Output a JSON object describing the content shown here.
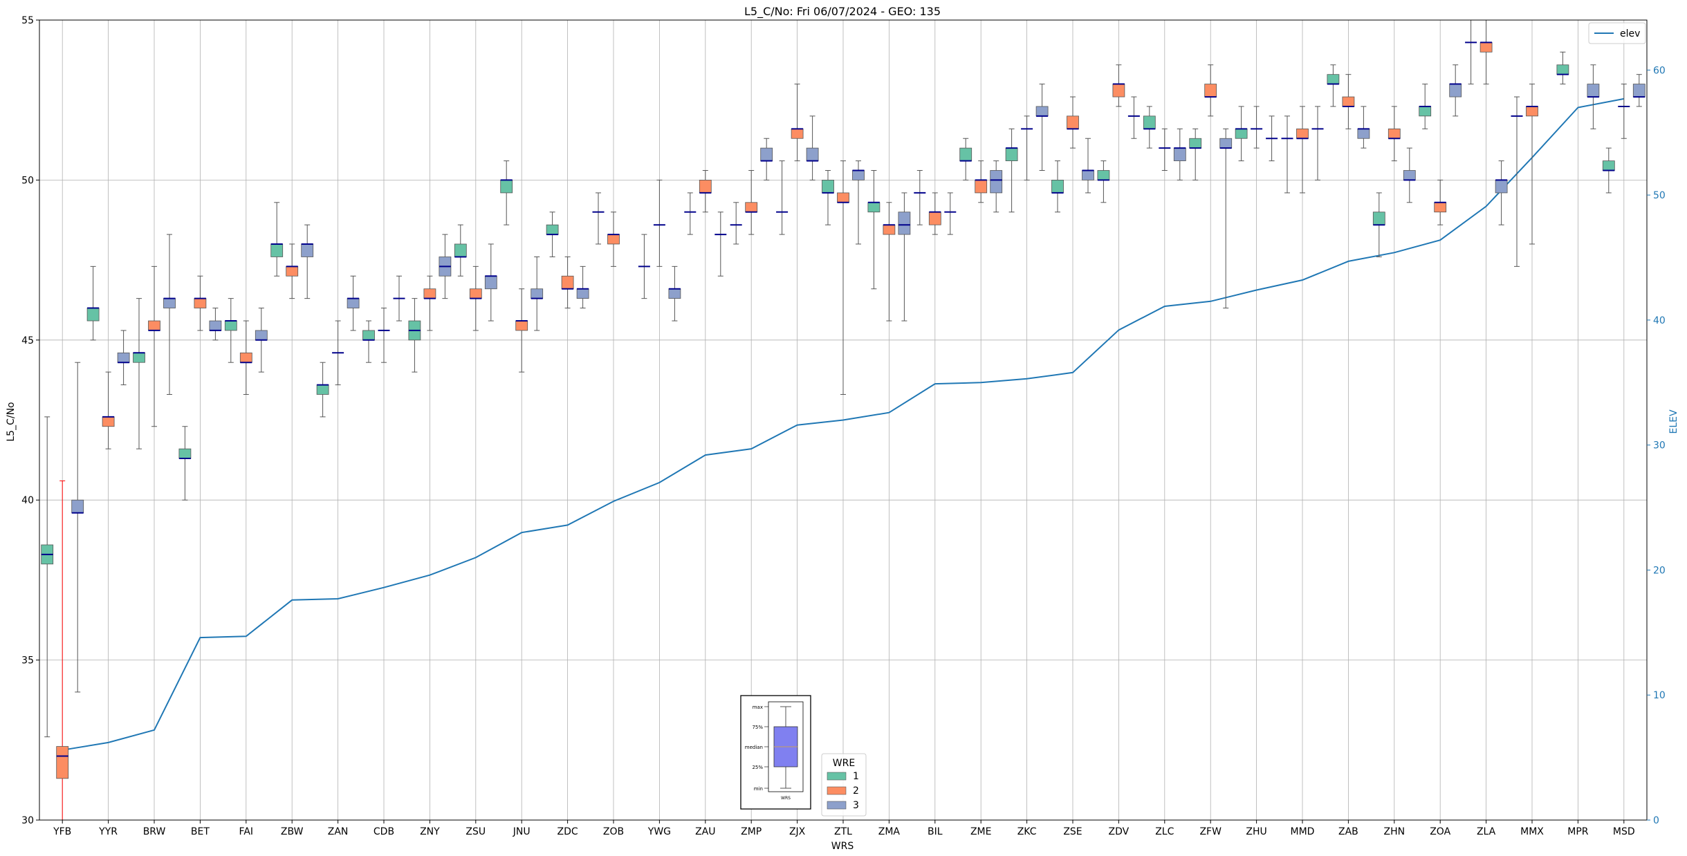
{
  "chart_data": {
    "type": "box",
    "title": "L5_C/No: Fri 06/07/2024 - GEO: 135",
    "xlabel": "WRS",
    "ylabel": "L5_C/No",
    "y2label": "ELEV",
    "ylim": [
      30,
      55
    ],
    "y2lim": [
      0,
      64
    ],
    "yticks": [
      30,
      35,
      40,
      45,
      50,
      55
    ],
    "y2ticks": [
      0,
      10,
      20,
      30,
      40,
      50,
      60
    ],
    "grid": true,
    "categories": [
      "YFB",
      "YYR",
      "BRW",
      "BET",
      "FAI",
      "ZBW",
      "ZAN",
      "CDB",
      "ZNY",
      "ZSU",
      "JNU",
      "ZDC",
      "ZOB",
      "YWG",
      "ZAU",
      "ZMP",
      "ZJX",
      "ZTL",
      "ZMA",
      "BIL",
      "ZME",
      "ZKC",
      "ZSE",
      "ZDV",
      "ZLC",
      "ZFW",
      "ZHU",
      "MMD",
      "ZAB",
      "ZHN",
      "ZOA",
      "ZLA",
      "MMX",
      "MPR",
      "MSD"
    ],
    "colors": {
      "1": "#66c2a5",
      "2": "#fc8d62",
      "3": "#8da0cb",
      "elev": "#1f77b4",
      "median": "#00008b",
      "outlier": "#ff0000"
    },
    "boxes": [
      {
        "cat": "YFB",
        "wre": "1",
        "min": 32.6,
        "q1": 38.0,
        "median": 38.3,
        "q3": 38.6,
        "max": 42.6
      },
      {
        "cat": "YFB",
        "wre": "2",
        "min": 30.0,
        "q1": 31.3,
        "median": 32.0,
        "q3": 32.3,
        "max": 40.6,
        "whisker_color": "#ff0000"
      },
      {
        "cat": "YFB",
        "wre": "3",
        "min": 34.0,
        "q1": 39.6,
        "median": 39.6,
        "q3": 40.0,
        "max": 44.3
      },
      {
        "cat": "YYR",
        "wre": "1",
        "min": 45.0,
        "q1": 45.6,
        "median": 46.0,
        "q3": 46.0,
        "max": 47.3
      },
      {
        "cat": "YYR",
        "wre": "2",
        "min": 41.6,
        "q1": 42.3,
        "median": 42.6,
        "q3": 42.6,
        "max": 44.0
      },
      {
        "cat": "YYR",
        "wre": "3",
        "min": 43.6,
        "q1": 44.3,
        "median": 44.3,
        "q3": 44.6,
        "max": 45.3
      },
      {
        "cat": "BRW",
        "wre": "1",
        "min": 41.6,
        "q1": 44.3,
        "median": 44.6,
        "q3": 44.6,
        "max": 46.3
      },
      {
        "cat": "BRW",
        "wre": "2",
        "min": 42.3,
        "q1": 45.3,
        "median": 45.3,
        "q3": 45.6,
        "max": 47.3
      },
      {
        "cat": "BRW",
        "wre": "3",
        "min": 43.3,
        "q1": 46.0,
        "median": 46.3,
        "q3": 46.3,
        "max": 48.3
      },
      {
        "cat": "BET",
        "wre": "1",
        "min": 40.0,
        "q1": 41.3,
        "median": 41.3,
        "q3": 41.6,
        "max": 42.3
      },
      {
        "cat": "BET",
        "wre": "2",
        "min": 45.3,
        "q1": 46.0,
        "median": 46.3,
        "q3": 46.3,
        "max": 47.0
      },
      {
        "cat": "BET",
        "wre": "3",
        "min": 45.0,
        "q1": 45.3,
        "median": 45.3,
        "q3": 45.6,
        "max": 46.0
      },
      {
        "cat": "FAI",
        "wre": "1",
        "min": 44.3,
        "q1": 45.3,
        "median": 45.6,
        "q3": 45.6,
        "max": 46.3
      },
      {
        "cat": "FAI",
        "wre": "2",
        "min": 43.3,
        "q1": 44.3,
        "median": 44.3,
        "q3": 44.6,
        "max": 45.6
      },
      {
        "cat": "FAI",
        "wre": "3",
        "min": 44.0,
        "q1": 45.0,
        "median": 45.0,
        "q3": 45.3,
        "max": 46.0
      },
      {
        "cat": "ZBW",
        "wre": "1",
        "min": 47.0,
        "q1": 47.6,
        "median": 48.0,
        "q3": 48.0,
        "max": 49.3
      },
      {
        "cat": "ZBW",
        "wre": "2",
        "min": 46.3,
        "q1": 47.0,
        "median": 47.3,
        "q3": 47.3,
        "max": 48.0
      },
      {
        "cat": "ZBW",
        "wre": "3",
        "min": 46.3,
        "q1": 47.6,
        "median": 48.0,
        "q3": 48.0,
        "max": 48.6
      },
      {
        "cat": "ZAN",
        "wre": "1",
        "min": 42.6,
        "q1": 43.3,
        "median": 43.6,
        "q3": 43.6,
        "max": 44.3
      },
      {
        "cat": "ZAN",
        "wre": "2",
        "min": 43.6,
        "q1": 44.6,
        "median": 44.6,
        "q3": 44.6,
        "max": 45.6
      },
      {
        "cat": "ZAN",
        "wre": "3",
        "min": 45.3,
        "q1": 46.0,
        "median": 46.3,
        "q3": 46.3,
        "max": 47.0
      },
      {
        "cat": "CDB",
        "wre": "1",
        "min": 44.3,
        "q1": 45.0,
        "median": 45.0,
        "q3": 45.3,
        "max": 45.6
      },
      {
        "cat": "CDB",
        "wre": "2",
        "min": 44.3,
        "q1": 45.3,
        "median": 45.3,
        "q3": 45.3,
        "max": 46.0
      },
      {
        "cat": "CDB",
        "wre": "3",
        "min": 45.6,
        "q1": 46.3,
        "median": 46.3,
        "q3": 46.3,
        "max": 47.0
      },
      {
        "cat": "ZNY",
        "wre": "1",
        "min": 44.0,
        "q1": 45.0,
        "median": 45.3,
        "q3": 45.6,
        "max": 46.3
      },
      {
        "cat": "ZNY",
        "wre": "2",
        "min": 45.3,
        "q1": 46.3,
        "median": 46.3,
        "q3": 46.6,
        "max": 47.0
      },
      {
        "cat": "ZNY",
        "wre": "3",
        "min": 46.3,
        "q1": 47.0,
        "median": 47.3,
        "q3": 47.6,
        "max": 48.3
      },
      {
        "cat": "ZSU",
        "wre": "1",
        "min": 47.0,
        "q1": 47.6,
        "median": 47.6,
        "q3": 48.0,
        "max": 48.6
      },
      {
        "cat": "ZSU",
        "wre": "2",
        "min": 45.3,
        "q1": 46.3,
        "median": 46.3,
        "q3": 46.6,
        "max": 47.3
      },
      {
        "cat": "ZSU",
        "wre": "3",
        "min": 45.6,
        "q1": 46.6,
        "median": 47.0,
        "q3": 47.0,
        "max": 48.0
      },
      {
        "cat": "JNU",
        "wre": "1",
        "min": 48.6,
        "q1": 49.6,
        "median": 50.0,
        "q3": 50.0,
        "max": 50.6
      },
      {
        "cat": "JNU",
        "wre": "2",
        "min": 44.0,
        "q1": 45.3,
        "median": 45.6,
        "q3": 45.6,
        "max": 46.6
      },
      {
        "cat": "JNU",
        "wre": "3",
        "min": 45.3,
        "q1": 46.3,
        "median": 46.3,
        "q3": 46.6,
        "max": 47.6
      },
      {
        "cat": "ZDC",
        "wre": "1",
        "min": 47.6,
        "q1": 48.3,
        "median": 48.3,
        "q3": 48.6,
        "max": 49.0
      },
      {
        "cat": "ZDC",
        "wre": "2",
        "min": 46.0,
        "q1": 46.6,
        "median": 46.6,
        "q3": 47.0,
        "max": 47.6
      },
      {
        "cat": "ZDC",
        "wre": "3",
        "min": 46.0,
        "q1": 46.3,
        "median": 46.6,
        "q3": 46.6,
        "max": 47.3
      },
      {
        "cat": "ZOB",
        "wre": "1",
        "min": 48.0,
        "q1": 49.0,
        "median": 49.0,
        "q3": 49.0,
        "max": 49.6
      },
      {
        "cat": "ZOB",
        "wre": "2",
        "min": 47.3,
        "q1": 48.0,
        "median": 48.3,
        "q3": 48.3,
        "max": 49.0
      },
      {
        "cat": "YWG",
        "wre": "1",
        "min": 46.3,
        "q1": 47.3,
        "median": 47.3,
        "q3": 47.3,
        "max": 48.3
      },
      {
        "cat": "YWG",
        "wre": "2",
        "min": 47.3,
        "q1": 48.6,
        "median": 48.6,
        "q3": 48.6,
        "max": 50.0
      },
      {
        "cat": "YWG",
        "wre": "3",
        "min": 45.6,
        "q1": 46.3,
        "median": 46.6,
        "q3": 46.6,
        "max": 47.3
      },
      {
        "cat": "ZAU",
        "wre": "1",
        "min": 48.3,
        "q1": 49.0,
        "median": 49.0,
        "q3": 49.0,
        "max": 49.6
      },
      {
        "cat": "ZAU",
        "wre": "2",
        "min": 49.0,
        "q1": 49.6,
        "median": 49.6,
        "q3": 50.0,
        "max": 50.3
      },
      {
        "cat": "ZAU",
        "wre": "3",
        "min": 47.0,
        "q1": 48.3,
        "median": 48.3,
        "q3": 48.3,
        "max": 49.0
      },
      {
        "cat": "ZMP",
        "wre": "1",
        "min": 48.0,
        "q1": 48.6,
        "median": 48.6,
        "q3": 48.6,
        "max": 49.3
      },
      {
        "cat": "ZMP",
        "wre": "2",
        "min": 48.3,
        "q1": 49.0,
        "median": 49.0,
        "q3": 49.3,
        "max": 50.3
      },
      {
        "cat": "ZMP",
        "wre": "3",
        "min": 50.0,
        "q1": 50.6,
        "median": 50.6,
        "q3": 51.0,
        "max": 51.3
      },
      {
        "cat": "ZJX",
        "wre": "1",
        "min": 48.3,
        "q1": 49.0,
        "median": 49.0,
        "q3": 49.0,
        "max": 50.6
      },
      {
        "cat": "ZJX",
        "wre": "2",
        "min": 50.6,
        "q1": 51.3,
        "median": 51.6,
        "q3": 51.6,
        "max": 53.0
      },
      {
        "cat": "ZJX",
        "wre": "3",
        "min": 50.0,
        "q1": 50.6,
        "median": 50.6,
        "q3": 51.0,
        "max": 52.0
      },
      {
        "cat": "ZTL",
        "wre": "1",
        "min": 48.6,
        "q1": 49.6,
        "median": 49.6,
        "q3": 50.0,
        "max": 50.3
      },
      {
        "cat": "ZTL",
        "wre": "2",
        "min": 43.3,
        "q1": 49.3,
        "median": 49.3,
        "q3": 49.6,
        "max": 50.6
      },
      {
        "cat": "ZTL",
        "wre": "3",
        "min": 48.0,
        "q1": 50.0,
        "median": 50.3,
        "q3": 50.3,
        "max": 50.6
      },
      {
        "cat": "ZMA",
        "wre": "1",
        "min": 46.6,
        "q1": 49.0,
        "median": 49.3,
        "q3": 49.3,
        "max": 50.3
      },
      {
        "cat": "ZMA",
        "wre": "2",
        "min": 45.6,
        "q1": 48.3,
        "median": 48.6,
        "q3": 48.6,
        "max": 49.3
      },
      {
        "cat": "ZMA",
        "wre": "3",
        "min": 45.6,
        "q1": 48.3,
        "median": 48.6,
        "q3": 49.0,
        "max": 49.6
      },
      {
        "cat": "BIL",
        "wre": "1",
        "min": 48.6,
        "q1": 49.6,
        "median": 49.6,
        "q3": 49.6,
        "max": 50.3
      },
      {
        "cat": "BIL",
        "wre": "2",
        "min": 48.3,
        "q1": 48.6,
        "median": 49.0,
        "q3": 49.0,
        "max": 49.6
      },
      {
        "cat": "BIL",
        "wre": "3",
        "min": 48.3,
        "q1": 49.0,
        "median": 49.0,
        "q3": 49.0,
        "max": 49.6
      },
      {
        "cat": "ZME",
        "wre": "1",
        "min": 50.0,
        "q1": 50.6,
        "median": 50.6,
        "q3": 51.0,
        "max": 51.3
      },
      {
        "cat": "ZME",
        "wre": "2",
        "min": 49.3,
        "q1": 49.6,
        "median": 50.0,
        "q3": 50.0,
        "max": 50.6
      },
      {
        "cat": "ZME",
        "wre": "3",
        "min": 49.0,
        "q1": 49.6,
        "median": 50.0,
        "q3": 50.3,
        "max": 50.6
      },
      {
        "cat": "ZKC",
        "wre": "1",
        "min": 49.0,
        "q1": 50.6,
        "median": 51.0,
        "q3": 51.0,
        "max": 51.6
      },
      {
        "cat": "ZKC",
        "wre": "2",
        "min": 50.0,
        "q1": 51.6,
        "median": 51.6,
        "q3": 51.6,
        "max": 52.0
      },
      {
        "cat": "ZKC",
        "wre": "3",
        "min": 50.3,
        "q1": 52.0,
        "median": 52.0,
        "q3": 52.3,
        "max": 53.0
      },
      {
        "cat": "ZSE",
        "wre": "1",
        "min": 49.0,
        "q1": 49.6,
        "median": 49.6,
        "q3": 50.0,
        "max": 50.6
      },
      {
        "cat": "ZSE",
        "wre": "2",
        "min": 51.0,
        "q1": 51.6,
        "median": 51.6,
        "q3": 52.0,
        "max": 52.6
      },
      {
        "cat": "ZSE",
        "wre": "3",
        "min": 49.6,
        "q1": 50.0,
        "median": 50.3,
        "q3": 50.3,
        "max": 51.3
      },
      {
        "cat": "ZDV",
        "wre": "1",
        "min": 49.3,
        "q1": 50.0,
        "median": 50.0,
        "q3": 50.3,
        "max": 50.6
      },
      {
        "cat": "ZDV",
        "wre": "2",
        "min": 52.3,
        "q1": 52.6,
        "median": 53.0,
        "q3": 53.0,
        "max": 53.6
      },
      {
        "cat": "ZDV",
        "wre": "3",
        "min": 51.3,
        "q1": 52.0,
        "median": 52.0,
        "q3": 52.0,
        "max": 52.6
      },
      {
        "cat": "ZLC",
        "wre": "1",
        "min": 51.0,
        "q1": 51.6,
        "median": 51.6,
        "q3": 52.0,
        "max": 52.3
      },
      {
        "cat": "ZLC",
        "wre": "2",
        "min": 50.3,
        "q1": 51.0,
        "median": 51.0,
        "q3": 51.0,
        "max": 51.6
      },
      {
        "cat": "ZLC",
        "wre": "3",
        "min": 50.0,
        "q1": 50.6,
        "median": 51.0,
        "q3": 51.0,
        "max": 51.6
      },
      {
        "cat": "ZFW",
        "wre": "1",
        "min": 50.0,
        "q1": 51.0,
        "median": 51.0,
        "q3": 51.3,
        "max": 51.6
      },
      {
        "cat": "ZFW",
        "wre": "2",
        "min": 52.0,
        "q1": 52.6,
        "median": 52.6,
        "q3": 53.0,
        "max": 53.6
      },
      {
        "cat": "ZFW",
        "wre": "3",
        "min": 46.0,
        "q1": 51.0,
        "median": 51.0,
        "q3": 51.3,
        "max": 51.6
      },
      {
        "cat": "ZHU",
        "wre": "1",
        "min": 50.6,
        "q1": 51.3,
        "median": 51.6,
        "q3": 51.6,
        "max": 52.3
      },
      {
        "cat": "ZHU",
        "wre": "2",
        "min": 51.0,
        "q1": 51.6,
        "median": 51.6,
        "q3": 51.6,
        "max": 52.3
      },
      {
        "cat": "ZHU",
        "wre": "3",
        "min": 50.6,
        "q1": 51.3,
        "median": 51.3,
        "q3": 51.3,
        "max": 52.0
      },
      {
        "cat": "MMD",
        "wre": "1",
        "min": 49.6,
        "q1": 51.3,
        "median": 51.3,
        "q3": 51.3,
        "max": 52.0
      },
      {
        "cat": "MMD",
        "wre": "2",
        "min": 49.6,
        "q1": 51.3,
        "median": 51.3,
        "q3": 51.6,
        "max": 52.3
      },
      {
        "cat": "MMD",
        "wre": "3",
        "min": 50.0,
        "q1": 51.6,
        "median": 51.6,
        "q3": 51.6,
        "max": 52.3
      },
      {
        "cat": "ZAB",
        "wre": "1",
        "min": 52.3,
        "q1": 53.0,
        "median": 53.0,
        "q3": 53.3,
        "max": 53.6
      },
      {
        "cat": "ZAB",
        "wre": "2",
        "min": 51.6,
        "q1": 52.3,
        "median": 52.3,
        "q3": 52.6,
        "max": 53.3
      },
      {
        "cat": "ZAB",
        "wre": "3",
        "min": 51.0,
        "q1": 51.3,
        "median": 51.6,
        "q3": 51.6,
        "max": 52.3
      },
      {
        "cat": "ZHN",
        "wre": "1",
        "min": 47.6,
        "q1": 48.6,
        "median": 48.6,
        "q3": 49.0,
        "max": 49.6
      },
      {
        "cat": "ZHN",
        "wre": "2",
        "min": 50.6,
        "q1": 51.3,
        "median": 51.3,
        "q3": 51.6,
        "max": 52.3
      },
      {
        "cat": "ZHN",
        "wre": "3",
        "min": 49.3,
        "q1": 50.0,
        "median": 50.0,
        "q3": 50.3,
        "max": 51.0
      },
      {
        "cat": "ZOA",
        "wre": "1",
        "min": 51.6,
        "q1": 52.0,
        "median": 52.3,
        "q3": 52.3,
        "max": 53.0
      },
      {
        "cat": "ZOA",
        "wre": "2",
        "min": 48.6,
        "q1": 49.0,
        "median": 49.3,
        "q3": 49.3,
        "max": 50.0
      },
      {
        "cat": "ZOA",
        "wre": "3",
        "min": 52.0,
        "q1": 52.6,
        "median": 53.0,
        "q3": 53.0,
        "max": 53.6
      },
      {
        "cat": "ZLA",
        "wre": "1",
        "min": 53.0,
        "q1": 54.3,
        "median": 54.3,
        "q3": 54.3,
        "max": 55.0
      },
      {
        "cat": "ZLA",
        "wre": "2",
        "min": 53.0,
        "q1": 54.0,
        "median": 54.3,
        "q3": 54.3,
        "max": 55.0
      },
      {
        "cat": "ZLA",
        "wre": "3",
        "min": 48.6,
        "q1": 49.6,
        "median": 50.0,
        "q3": 50.0,
        "max": 50.6
      },
      {
        "cat": "MMX",
        "wre": "1",
        "min": 47.3,
        "q1": 52.0,
        "median": 52.0,
        "q3": 52.0,
        "max": 52.6
      },
      {
        "cat": "MMX",
        "wre": "2",
        "min": 48.0,
        "q1": 52.0,
        "median": 52.3,
        "q3": 52.3,
        "max": 53.0
      },
      {
        "cat": "MPR",
        "wre": "1",
        "min": 53.0,
        "q1": 53.3,
        "median": 53.3,
        "q3": 53.6,
        "max": 54.0
      },
      {
        "cat": "MPR",
        "wre": "3",
        "min": 51.6,
        "q1": 52.6,
        "median": 52.6,
        "q3": 53.0,
        "max": 53.6
      },
      {
        "cat": "MSD",
        "wre": "1",
        "min": 49.6,
        "q1": 50.3,
        "median": 50.3,
        "q3": 50.6,
        "max": 51.0
      },
      {
        "cat": "MSD",
        "wre": "2",
        "min": 51.3,
        "q1": 52.3,
        "median": 52.3,
        "q3": 52.3,
        "max": 53.0
      },
      {
        "cat": "MSD",
        "wre": "3",
        "min": 52.3,
        "q1": 52.6,
        "median": 52.6,
        "q3": 53.0,
        "max": 53.3
      }
    ],
    "elev_series": {
      "name": "elev",
      "values": [
        5.6,
        6.2,
        7.2,
        14.6,
        14.7,
        17.6,
        17.7,
        18.6,
        19.6,
        21.0,
        23.0,
        23.6,
        25.5,
        27.0,
        29.2,
        29.7,
        31.6,
        32.0,
        32.6,
        34.9,
        35.0,
        35.3,
        35.8,
        39.2,
        41.1,
        41.5,
        42.4,
        43.2,
        44.7,
        45.4,
        46.4,
        49.1,
        53.0,
        57.0,
        57.7
      ]
    },
    "legend": {
      "title": "WRE",
      "entries": [
        "1",
        "2",
        "3"
      ],
      "placement": "lower-center"
    },
    "legend_elev": {
      "entries": [
        "elev"
      ],
      "placement": "upper-right"
    },
    "key_box": {
      "labels": [
        "max",
        "75%",
        "median",
        "25%",
        "min"
      ],
      "xlabel": "WRS"
    }
  }
}
